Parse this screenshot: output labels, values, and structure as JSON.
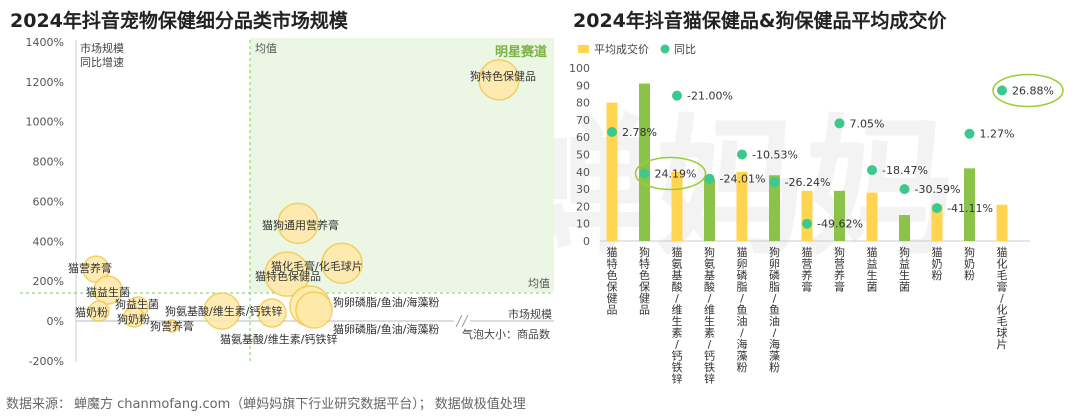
{
  "titles": {
    "left": "2024年抖音宠物保健细分品类市场规模",
    "right": "2024年抖音猫保健品&狗保健品平均成交价"
  },
  "footer": {
    "source_label": "数据来源：",
    "source": "蝉魔方 chanmofang.com（蝉妈妈旗下行业研究数据平台）；",
    "note": "数据做极值处理"
  },
  "watermark": "蝉妈妈",
  "colors": {
    "yellow": "#FFD54F",
    "bubble_fill": "#FFE9A8",
    "bubble_stroke": "#F2C94C",
    "green": "#8BC34A",
    "dot": "#3CC88F",
    "quadrant": "#E8F5E1",
    "avg_line": "#7CCB5A",
    "highlight_ellipse": "#9ACD32"
  },
  "chart_data": [
    {
      "type": "scatter",
      "title": "2024年抖音宠物保健细分品类市场规模",
      "ylabel": "市场规模\n同比增速",
      "xlabel": "市场规模",
      "size_label": "气泡大小：商品数",
      "yticks": [
        "1400%",
        "1200%",
        "1000%",
        "800%",
        "600%",
        "400%",
        "200%",
        "0%",
        "-200%"
      ],
      "ylim": [
        -200,
        1400
      ],
      "quadrant_label": "明星赛道",
      "avg_x_label": "均值",
      "avg_y_label": "均值",
      "points": [
        {
          "name": "狗特色保健品",
          "growth": 1210
        },
        {
          "name": "猫狗通用营养膏",
          "growth": 490
        },
        {
          "name": "猫特色保健品",
          "growth": 235
        },
        {
          "name": "猫化毛膏/化毛球片",
          "growth": 290
        },
        {
          "name": "狗卵磷脂/鱼油/海藻粉",
          "growth": 75
        },
        {
          "name": "猫卵磷脂/鱼油/海藻粉",
          "growth": 55
        },
        {
          "name": "狗氨基酸/维生素/钙铁锌",
          "growth": 50
        },
        {
          "name": "猫氨基酸/维生素/钙铁锌",
          "growth": 40
        },
        {
          "name": "猫营养膏",
          "growth": 260
        },
        {
          "name": "猫益生菌",
          "growth": 155
        },
        {
          "name": "猫奶粉",
          "growth": 50
        },
        {
          "name": "狗益生菌",
          "growth": 70
        },
        {
          "name": "狗奶粉",
          "growth": 20
        },
        {
          "name": "狗营养膏",
          "growth": -25
        }
      ]
    },
    {
      "type": "bar",
      "title": "2024年抖音猫保健品&狗保健品平均成交价",
      "legend": [
        "平均成交价",
        "同比"
      ],
      "ylim": [
        0,
        100
      ],
      "yticks": [
        "100",
        "90",
        "80",
        "70",
        "60",
        "50",
        "40",
        "30",
        "20",
        "10",
        "0"
      ],
      "categories": [
        "猫特色保健品",
        "狗特色保健品",
        "猫氨基酸/维生素/钙铁锌",
        "狗氨基酸/维生素/钙铁锌",
        "猫卵磷脂/鱼油/海藻粉",
        "狗卵磷脂/鱼油/海藻粉",
        "猫营养膏",
        "狗营养膏",
        "猫益生菌",
        "狗益生菌",
        "猫奶粉",
        "狗奶粉",
        "猫化毛膏/化毛球片"
      ],
      "category_labels": [
        "猫特色保健品",
        "狗特色保健品",
        "猫氨基酸/维生素/钙铁锌",
        "狗氨基酸/维生素/钙铁锌",
        "猫卵磷脂/鱼油/海藻粉",
        "狗卵磷脂/鱼油/海藻粉",
        "猫营养膏",
        "狗营养膏",
        "猫益生菌",
        "狗益生菌",
        "猫奶粉",
        "狗奶粉",
        "猫化毛膏/化毛球片"
      ],
      "values": [
        80,
        91,
        40,
        36,
        40,
        38,
        29,
        29,
        28,
        15,
        21,
        42,
        21
      ],
      "yoy_labels": [
        "2.78%",
        "24.19%",
        "-21.00%",
        "-24.01%",
        "-10.53%",
        "-26.24%",
        "-49.62%",
        "7.05%",
        "-18.47%",
        "-30.59%",
        "-41.11%",
        "1.27%",
        "26.88%"
      ],
      "yoy_dot_positions": [
        63,
        39,
        84,
        36,
        50,
        34,
        10,
        68,
        41,
        30,
        19,
        62,
        87
      ],
      "highlighted": [
        "24.19%",
        "26.88%"
      ]
    }
  ]
}
